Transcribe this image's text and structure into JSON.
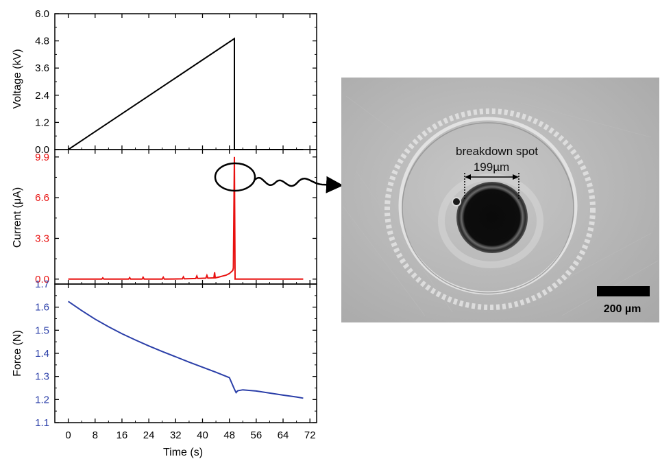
{
  "colors": {
    "voltage": "#000000",
    "current": "#e8100f",
    "force": "#2a3ea8",
    "axis": "#000000"
  },
  "chart_data": [
    {
      "type": "line",
      "panel": "voltage",
      "ylabel": "Voltage (kV)",
      "ylim": [
        0.0,
        6.0
      ],
      "yticks": [
        "0.0",
        "1.2",
        "2.4",
        "3.6",
        "4.8",
        "6.0"
      ],
      "xlim": [
        -4,
        74
      ],
      "series": [
        {
          "x": [
            0,
            49.5,
            49.5,
            70
          ],
          "y": [
            0.0,
            4.9,
            0.0,
            0.0
          ]
        }
      ]
    },
    {
      "type": "line",
      "panel": "current",
      "ylabel": "Current (μA)",
      "ylim": [
        -0.4,
        10.5
      ],
      "yticks": [
        "0.0",
        "3.3",
        "6.6",
        "9.9"
      ],
      "xlim": [
        -4,
        74
      ],
      "series": [
        {
          "x": [
            0,
            10,
            10.3,
            10.6,
            18,
            18.3,
            18.6,
            22,
            22.3,
            22.6,
            28,
            28.3,
            28.6,
            34,
            34.3,
            34.6,
            38,
            38.3,
            38.6,
            41,
            41.3,
            41.6,
            43.4,
            43.6,
            43.8,
            45,
            46,
            47,
            48,
            49,
            49.2,
            49.5,
            49.7,
            49.9,
            70
          ],
          "y": [
            0.0,
            0.0,
            0.1,
            0.0,
            0.0,
            0.12,
            0.0,
            0.0,
            0.15,
            0.0,
            0.0,
            0.15,
            0.0,
            0.02,
            0.18,
            0.02,
            0.05,
            0.25,
            0.05,
            0.08,
            0.3,
            0.08,
            0.1,
            0.55,
            0.1,
            0.18,
            0.25,
            0.32,
            0.45,
            0.7,
            0.9,
            9.9,
            0.0,
            0.0,
            0.0
          ]
        }
      ]
    },
    {
      "type": "line",
      "panel": "force",
      "ylabel": "Force (N)",
      "xlabel": "Time (s)",
      "ylim": [
        1.1,
        1.7
      ],
      "yticks": [
        "1.1",
        "1.2",
        "1.3",
        "1.4",
        "1.5",
        "1.6",
        "1.7"
      ],
      "xlim": [
        -4,
        74
      ],
      "xticks": [
        "0",
        "8",
        "16",
        "24",
        "32",
        "40",
        "48",
        "56",
        "64",
        "72"
      ],
      "series": [
        {
          "x": [
            0,
            4,
            8,
            12,
            16,
            20,
            24,
            28,
            32,
            36,
            40,
            44,
            48,
            49.5,
            50,
            50.5,
            52,
            56,
            60,
            64,
            68,
            70
          ],
          "y": [
            1.625,
            1.585,
            1.548,
            1.515,
            1.485,
            1.458,
            1.432,
            1.408,
            1.385,
            1.362,
            1.34,
            1.318,
            1.295,
            1.245,
            1.23,
            1.238,
            1.242,
            1.237,
            1.228,
            1.219,
            1.211,
            1.206
          ]
        }
      ]
    }
  ],
  "micrograph": {
    "annotation": "breakdown spot",
    "diameter_label": "199µm",
    "scale_bar_label": "200 µm"
  }
}
